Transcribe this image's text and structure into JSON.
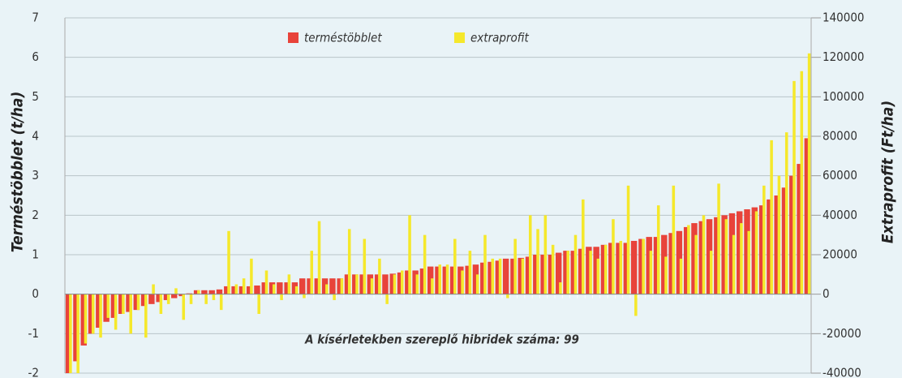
{
  "chart_data": {
    "type": "bar",
    "annotation": "A kísérletekben szereplő hibridek száma: 99",
    "ylabel": "Terméstöbblet (t/ha)",
    "y2label": "Extraprofit (Ft/ha)",
    "ylim": [
      -2,
      7
    ],
    "yticks": [
      -2,
      -1,
      0,
      1,
      2,
      3,
      4,
      5,
      6,
      7
    ],
    "y2lim": [
      -40000,
      140000
    ],
    "y2ticks": [
      -40000,
      -20000,
      0,
      20000,
      40000,
      60000,
      80000,
      100000,
      120000,
      140000
    ],
    "grid": true,
    "legend": "top",
    "series": [
      {
        "name": "terméstöbblet",
        "color": "#e8433a",
        "values": [
          -2.0,
          -1.7,
          -1.3,
          -1.0,
          -0.85,
          -0.7,
          -0.6,
          -0.5,
          -0.45,
          -0.4,
          -0.3,
          -0.25,
          -0.2,
          -0.15,
          -0.1,
          -0.05,
          0.02,
          0.1,
          0.1,
          0.1,
          0.12,
          0.2,
          0.2,
          0.2,
          0.2,
          0.22,
          0.3,
          0.3,
          0.3,
          0.3,
          0.3,
          0.4,
          0.4,
          0.4,
          0.4,
          0.4,
          0.4,
          0.5,
          0.5,
          0.5,
          0.5,
          0.5,
          0.5,
          0.52,
          0.55,
          0.6,
          0.6,
          0.65,
          0.7,
          0.7,
          0.7,
          0.7,
          0.7,
          0.72,
          0.75,
          0.8,
          0.82,
          0.85,
          0.9,
          0.9,
          0.92,
          0.95,
          1.0,
          1.0,
          1.0,
          1.05,
          1.1,
          1.1,
          1.15,
          1.2,
          1.2,
          1.25,
          1.3,
          1.3,
          1.3,
          1.35,
          1.4,
          1.45,
          1.45,
          1.5,
          1.55,
          1.6,
          1.7,
          1.8,
          1.85,
          1.9,
          1.95,
          2.0,
          2.05,
          2.1,
          2.15,
          2.2,
          2.25,
          2.4,
          2.5,
          2.7,
          3.0,
          3.3,
          3.95
        ]
      },
      {
        "name": "extraprofit",
        "color": "#f5e82b",
        "axis": "y2",
        "values": [
          -40000,
          -40000,
          -25000,
          -20000,
          -22000,
          -12000,
          -18000,
          -10000,
          -20000,
          -8000,
          -22000,
          5000,
          -10000,
          -5000,
          3000,
          -13000,
          -5000,
          2000,
          -5000,
          -3000,
          -8000,
          32000,
          5000,
          8000,
          18000,
          -10000,
          12000,
          5000,
          -3000,
          10000,
          4000,
          -2000,
          22000,
          37000,
          5000,
          -3000,
          8000,
          33000,
          10000,
          28000,
          8000,
          18000,
          -5000,
          10000,
          12000,
          40000,
          10000,
          30000,
          8000,
          15000,
          15000,
          28000,
          12000,
          22000,
          10000,
          30000,
          18000,
          18000,
          -2000,
          28000,
          18000,
          40000,
          33000,
          40000,
          25000,
          6000,
          22000,
          30000,
          48000,
          22000,
          18000,
          25000,
          38000,
          27000,
          55000,
          -11000,
          28000,
          22000,
          45000,
          19000,
          55000,
          18000,
          35000,
          30000,
          40000,
          22000,
          56000,
          38000,
          30000,
          36000,
          32000,
          42000,
          55000,
          78000,
          60000,
          82000,
          108000,
          113000,
          122000
        ]
      }
    ]
  }
}
